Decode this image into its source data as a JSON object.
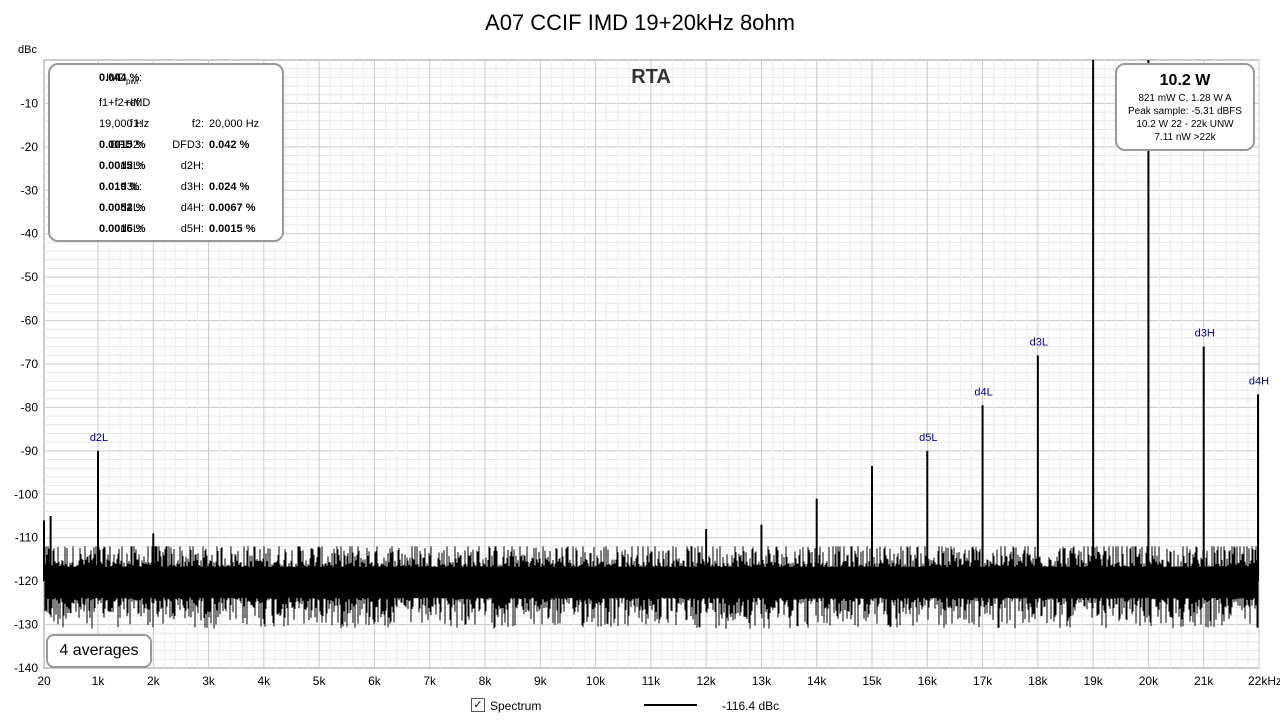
{
  "chart_data": {
    "type": "line",
    "title": "A07 CCIF IMD 19+20kHz 8ohm",
    "panel_label": "RTA",
    "y_unit": "dBc",
    "x_unit": "kHz",
    "ylim": [
      -140,
      0
    ],
    "xlim": [
      20,
      22000
    ],
    "x_scale": "linear",
    "grid": true,
    "y_ticks": [
      -10,
      -20,
      -30,
      -40,
      -50,
      -60,
      -70,
      -80,
      -90,
      -100,
      -110,
      -120,
      -130,
      -140
    ],
    "x_ticks": [
      {
        "value": 20,
        "label": "20"
      },
      {
        "value": 1000,
        "label": "1k"
      },
      {
        "value": 2000,
        "label": "2k"
      },
      {
        "value": 3000,
        "label": "3k"
      },
      {
        "value": 4000,
        "label": "4k"
      },
      {
        "value": 5000,
        "label": "5k"
      },
      {
        "value": 6000,
        "label": "6k"
      },
      {
        "value": 7000,
        "label": "7k"
      },
      {
        "value": 8000,
        "label": "8k"
      },
      {
        "value": 9000,
        "label": "9k"
      },
      {
        "value": 10000,
        "label": "10k"
      },
      {
        "value": 11000,
        "label": "11k"
      },
      {
        "value": 12000,
        "label": "12k"
      },
      {
        "value": 13000,
        "label": "13k"
      },
      {
        "value": 14000,
        "label": "14k"
      },
      {
        "value": 15000,
        "label": "15k"
      },
      {
        "value": 16000,
        "label": "16k"
      },
      {
        "value": 17000,
        "label": "17k"
      },
      {
        "value": 18000,
        "label": "18k"
      },
      {
        "value": 19000,
        "label": "19k"
      },
      {
        "value": 20000,
        "label": "20k"
      },
      {
        "value": 21000,
        "label": "21k"
      },
      {
        "value": 22000,
        "label": "22kHz"
      }
    ],
    "noise_floor": {
      "mean": -120,
      "min": -134,
      "max": -112
    },
    "series": [
      {
        "name": "Spectrum",
        "legend_value": "-116.4 dBc",
        "color": "#000000",
        "peaks": [
          {
            "x": 20,
            "y": -106
          },
          {
            "x": 140,
            "y": -105
          },
          {
            "x": 1000,
            "y": -90,
            "label": "d2L"
          },
          {
            "x": 2000,
            "y": -109
          },
          {
            "x": 12000,
            "y": -108
          },
          {
            "x": 13000,
            "y": -107
          },
          {
            "x": 14000,
            "y": -101
          },
          {
            "x": 15000,
            "y": -93.5
          },
          {
            "x": 16000,
            "y": -90,
            "label": "d5L"
          },
          {
            "x": 17000,
            "y": -79.5,
            "label": "d4L"
          },
          {
            "x": 18000,
            "y": -68,
            "label": "d3L"
          },
          {
            "x": 19000,
            "y": 0
          },
          {
            "x": 20000,
            "y": 0
          },
          {
            "x": 21000,
            "y": -66,
            "label": "d3H"
          },
          {
            "x": 22000,
            "y": -77,
            "label": "d4H"
          }
        ]
      }
    ]
  },
  "imd_panel": {
    "imd_label": "IMD",
    "imd_sub": "pwr",
    "imd_value": "0.044 %",
    "ref_label": "ref:",
    "ref_value": "f1+f2+IMD",
    "f1_label": "f1:",
    "f1_value": "19,000 Hz",
    "f2_label": "f2:",
    "f2_value": "20,000 Hz",
    "dfd2_label": "DFD2:",
    "dfd2_value": "0.0015 %",
    "dfd3_label": "DFD3:",
    "dfd3_value": "0.042 %",
    "d2l_label": "d2L:",
    "d2l_value": "0.0015 %",
    "d2h_label": "d2H:",
    "d2h_value": "",
    "d3l_label": "d3L:",
    "d3l_value": "0.019 %",
    "d3h_label": "d3H:",
    "d3h_value": "0.024 %",
    "d4l_label": "d4L:",
    "d4l_value": "0.0052 %",
    "d4h_label": "d4H:",
    "d4h_value": "0.0067 %",
    "d5l_label": "d5L:",
    "d5l_value": "0.0016 %",
    "d5h_label": "d5H:",
    "d5h_value": "0.0015 %"
  },
  "power_panel": {
    "main": "10.2 W",
    "line1": "821 mW C, 1.28 W A",
    "line2": "Peak sample: -5.31 dBFS",
    "line3": "10.2 W 22 - 22k UNW",
    "line4": "7.11 nW >22k"
  },
  "averages": "4 averages",
  "legend": {
    "checkbox_mark": "✓",
    "series_label": "Spectrum",
    "value": "-116.4 dBc"
  }
}
